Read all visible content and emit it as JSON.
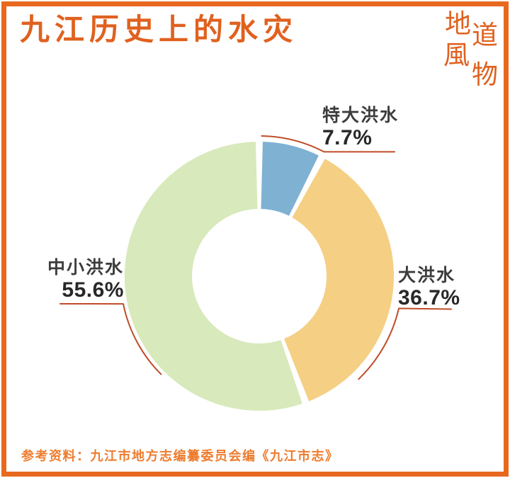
{
  "header": {
    "title": "九江历史上的水灾",
    "logo_chars": [
      "地",
      "道",
      "風",
      "物"
    ]
  },
  "chart_data": {
    "type": "pie",
    "donut": true,
    "title": "九江历史上的水灾",
    "units": "%",
    "direction": "clockwise",
    "start_angle_deg": 0,
    "slices": [
      {
        "label": "特大洪水",
        "value": 7.7,
        "pct_label": "7.7%",
        "color": "#7fb1d3"
      },
      {
        "label": "大洪水",
        "value": 36.7,
        "pct_label": "36.7%",
        "color": "#f5cf83"
      },
      {
        "label": "中小洪水",
        "value": 55.6,
        "pct_label": "55.6%",
        "color": "#d8e9bb"
      }
    ],
    "leader_line_color": "#c04c28"
  },
  "footer": {
    "reference": "参考资料：九江市地方志编纂委员会编《九江市志》"
  },
  "colors": {
    "accent_orange": "#e0611f",
    "frame_border": "#e8681e",
    "footer_text": "#ee7c2e",
    "label_name_text": "#3d3d3d",
    "label_pct_text": "#282828"
  }
}
